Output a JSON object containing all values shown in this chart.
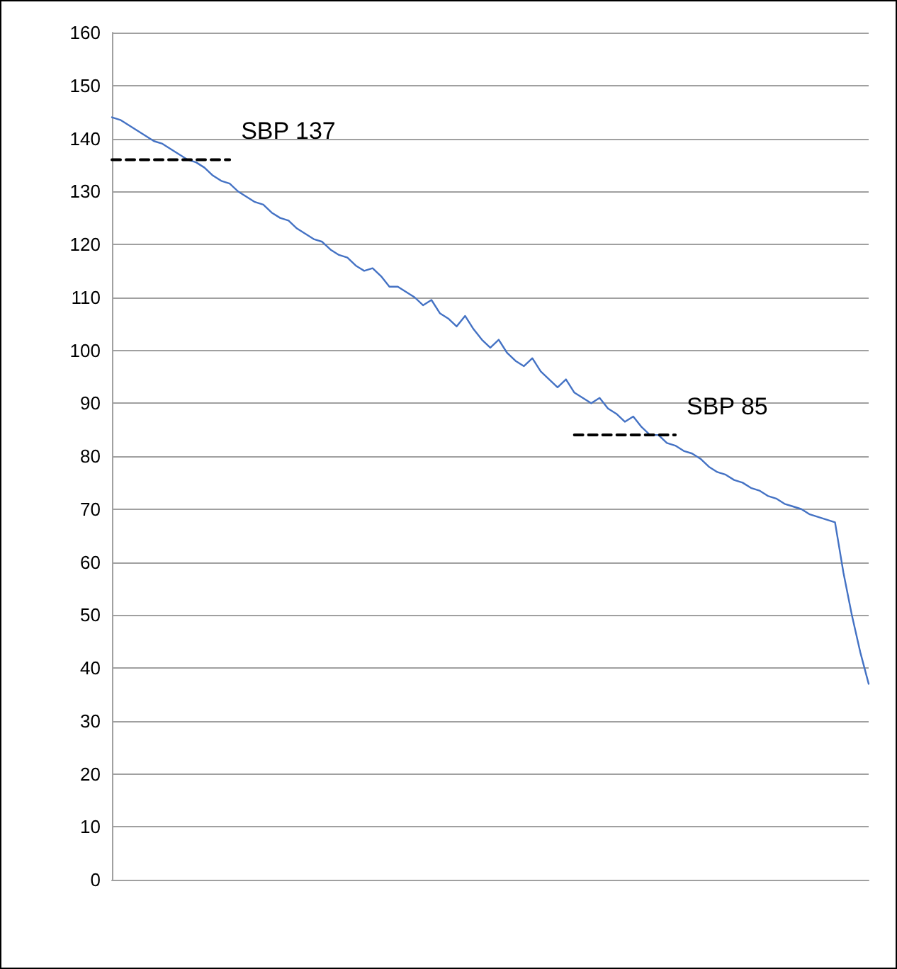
{
  "chart_data": {
    "type": "line",
    "categories": [
      null,
      null,
      null,
      null,
      null,
      null,
      null,
      null,
      null,
      null,
      null,
      null,
      null,
      null,
      null,
      null,
      null,
      null,
      null,
      null,
      null,
      null,
      null,
      null,
      null,
      null,
      null,
      null,
      null,
      null,
      null,
      null,
      null,
      null,
      null,
      null,
      null,
      null,
      null,
      null,
      null,
      null,
      null,
      null,
      null,
      null,
      null,
      null,
      null,
      null,
      null,
      null,
      null,
      null,
      null,
      null,
      null,
      null,
      null,
      null,
      null,
      null,
      null,
      null,
      null,
      null,
      null,
      null,
      null,
      null,
      null,
      null,
      null,
      null,
      null,
      null,
      null,
      null,
      null,
      null,
      null,
      null,
      null,
      null,
      null,
      null,
      null,
      null,
      null,
      null,
      null
    ],
    "ylim": [
      0,
      160
    ],
    "yticks": [
      0,
      10,
      20,
      30,
      40,
      50,
      60,
      70,
      80,
      90,
      100,
      110,
      120,
      130,
      140,
      150,
      160
    ],
    "grid": "y",
    "legend": false,
    "tick_labels": "y",
    "series": [
      {
        "color": "#4472c4",
        "line_style": "solid",
        "values": [
          144,
          143.5,
          142.5,
          141.5,
          140.5,
          139.5,
          139,
          138,
          137,
          136,
          135.5,
          134.5,
          133,
          132,
          131.5,
          130,
          129,
          128,
          127.5,
          126,
          125,
          124.5,
          123,
          122,
          121,
          120.5,
          119,
          118,
          117.5,
          116,
          115,
          115.5,
          114,
          112,
          112,
          111,
          110,
          108.5,
          109.5,
          107,
          106,
          104.5,
          106.5,
          104,
          102,
          100.5,
          102,
          99.5,
          98,
          97,
          98.5,
          96,
          94.5,
          93,
          94.5,
          92,
          91,
          90,
          91,
          89,
          88,
          86.5,
          87.5,
          85.5,
          84,
          84,
          82.5,
          82,
          81,
          80.5,
          79.5,
          78,
          77,
          76.5,
          75.5,
          75,
          74,
          73.5,
          72.5,
          72,
          71,
          70.5,
          70,
          69,
          68.5,
          68,
          67.5,
          58,
          50,
          43,
          37
        ]
      },
      {
        "name": "SBP 137",
        "color": "#000000",
        "line_style": "dashed",
        "values": [
          136,
          136,
          136,
          136,
          136,
          136,
          136,
          136,
          136,
          136,
          136,
          136,
          136,
          136,
          136,
          null,
          null,
          null,
          null,
          null,
          null,
          null,
          null,
          null,
          null,
          null,
          null,
          null,
          null,
          null,
          null,
          null,
          null,
          null,
          null,
          null,
          null,
          null,
          null,
          null,
          null,
          null,
          null,
          null,
          null,
          null,
          null,
          null,
          null,
          null,
          null,
          null,
          null,
          null,
          null,
          null,
          null,
          null,
          null,
          null,
          null,
          null,
          null,
          null,
          null,
          null,
          null,
          null,
          null,
          null,
          null,
          null,
          null,
          null,
          null,
          null,
          null,
          null,
          null,
          null,
          null,
          null,
          null,
          null,
          null,
          null,
          null,
          null,
          null,
          null,
          null
        ]
      },
      {
        "name": "SBP 85",
        "color": "#000000",
        "line_style": "dashed",
        "values": [
          null,
          null,
          null,
          null,
          null,
          null,
          null,
          null,
          null,
          null,
          null,
          null,
          null,
          null,
          null,
          null,
          null,
          null,
          null,
          null,
          null,
          null,
          null,
          null,
          null,
          null,
          null,
          null,
          null,
          null,
          null,
          null,
          null,
          null,
          null,
          null,
          null,
          null,
          null,
          null,
          null,
          null,
          null,
          null,
          null,
          null,
          null,
          null,
          null,
          null,
          null,
          null,
          null,
          null,
          null,
          84,
          84,
          84,
          84,
          84,
          84,
          84,
          84,
          84,
          84,
          84,
          84,
          84,
          null,
          null,
          null,
          null,
          null,
          null,
          null,
          null,
          null,
          null,
          null,
          null,
          null,
          null,
          null,
          null,
          null,
          null,
          null,
          null,
          null,
          null,
          null
        ]
      }
    ]
  }
}
